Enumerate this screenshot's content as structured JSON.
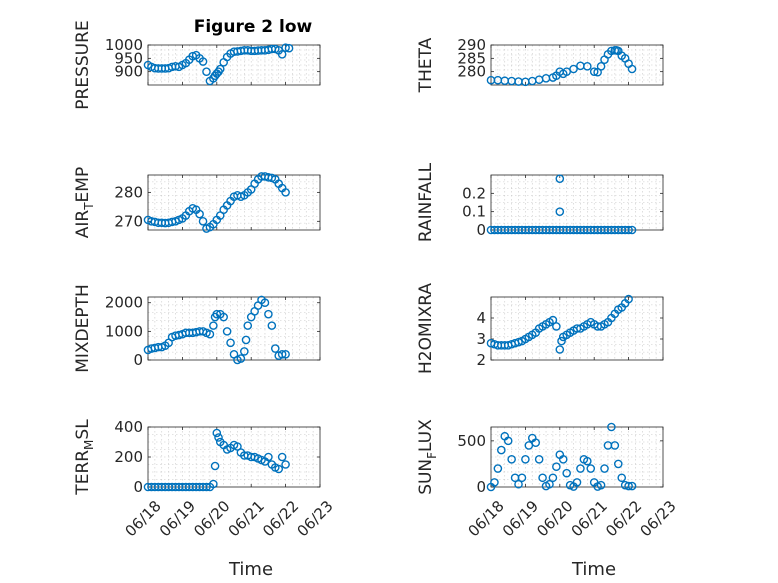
{
  "figure": {
    "title": "Figure 2 low",
    "marker_color": "#0072BD",
    "xlabel": "Time",
    "xticks": [
      "06/18",
      "06/19",
      "06/20",
      "06/21",
      "06/22",
      "06/23"
    ]
  },
  "chart_data": [
    {
      "type": "scatter",
      "ylabel": "PRESSURE",
      "ylim": [
        850,
        1000
      ],
      "yticks": [
        {
          "v": 1000,
          "label": "1000"
        },
        {
          "v": 950,
          "label": "950"
        },
        {
          "v": 900,
          "label": "900"
        }
      ],
      "x": [
        0,
        0.1,
        0.2,
        0.3,
        0.4,
        0.5,
        0.6,
        0.7,
        0.8,
        0.9,
        1.0,
        1.1,
        1.2,
        1.3,
        1.4,
        1.5,
        1.6,
        1.7,
        1.8,
        1.9,
        1.95,
        2.0,
        2.05,
        2.1,
        2.2,
        2.3,
        2.4,
        2.5,
        2.6,
        2.7,
        2.8,
        2.9,
        3.0,
        3.1,
        3.2,
        3.3,
        3.4,
        3.5,
        3.6,
        3.7,
        3.8,
        3.9,
        4.0,
        4.1
      ],
      "y": [
        925,
        918,
        913,
        912,
        912,
        912,
        913,
        918,
        920,
        918,
        925,
        932,
        945,
        958,
        962,
        950,
        938,
        900,
        865,
        875,
        885,
        893,
        900,
        910,
        935,
        955,
        968,
        975,
        976,
        978,
        980,
        980,
        978,
        978,
        979,
        980,
        980,
        982,
        985,
        985,
        980,
        965,
        990,
        988
      ]
    },
    {
      "type": "scatter",
      "ylabel": "THETA",
      "ylim": [
        275,
        290
      ],
      "yticks": [
        {
          "v": 290,
          "label": "290"
        },
        {
          "v": 285,
          "label": "285"
        },
        {
          "v": 280,
          "label": "280"
        }
      ],
      "x": [
        0,
        0.2,
        0.4,
        0.6,
        0.8,
        1.0,
        1.2,
        1.4,
        1.6,
        1.8,
        1.9,
        2.0,
        2.1,
        2.2,
        2.4,
        2.6,
        2.8,
        3.0,
        3.1,
        3.2,
        3.3,
        3.4,
        3.5,
        3.6,
        3.65,
        3.7,
        3.8,
        3.9,
        4.0,
        4.1
      ],
      "y": [
        276.8,
        276.8,
        276.6,
        276.5,
        276.3,
        276.2,
        276.5,
        277.0,
        277.5,
        277.8,
        278.5,
        280.0,
        279.2,
        280.0,
        281.0,
        282.2,
        282.0,
        280.0,
        279.8,
        282.0,
        284.5,
        286.5,
        287.8,
        288.0,
        288.0,
        287.8,
        286.0,
        285.0,
        283.0,
        281.0
      ]
    },
    {
      "type": "scatter",
      "ylabel": "AIR_TEMP",
      "ylabel_parts": [
        "AIR",
        "T",
        "EMP"
      ],
      "ylim": [
        267,
        286
      ],
      "yticks": [
        {
          "v": 280,
          "label": "280"
        },
        {
          "v": 270,
          "label": "270"
        }
      ],
      "x": [
        0,
        0.1,
        0.2,
        0.3,
        0.4,
        0.5,
        0.6,
        0.7,
        0.8,
        0.9,
        1.0,
        1.1,
        1.2,
        1.3,
        1.4,
        1.5,
        1.6,
        1.7,
        1.8,
        1.9,
        2.0,
        2.1,
        2.2,
        2.3,
        2.4,
        2.5,
        2.6,
        2.7,
        2.8,
        2.9,
        3.0,
        3.1,
        3.2,
        3.3,
        3.4,
        3.5,
        3.6,
        3.7,
        3.8,
        3.9,
        4.0
      ],
      "y": [
        270.5,
        270,
        269.8,
        269.5,
        269.5,
        269.4,
        269.5,
        269.8,
        270,
        270.5,
        271,
        272,
        273.5,
        274.5,
        274,
        272.5,
        270,
        267.5,
        268,
        269,
        270.5,
        272,
        274,
        275.5,
        277,
        278.5,
        279,
        278.5,
        279,
        280,
        281,
        283,
        284.5,
        285.5,
        285.5,
        285.2,
        285,
        284.5,
        283,
        281.5,
        280
      ]
    },
    {
      "type": "scatter",
      "ylabel": "RAINFALL",
      "ylim": [
        0,
        0.3
      ],
      "yticks": [
        {
          "v": 0.2,
          "label": "0.2"
        },
        {
          "v": 0.1,
          "label": "0.1"
        },
        {
          "v": 0,
          "label": "0"
        }
      ],
      "x": [
        0,
        0.1,
        0.2,
        0.3,
        0.4,
        0.5,
        0.6,
        0.7,
        0.8,
        0.9,
        1.0,
        1.1,
        1.2,
        1.3,
        1.4,
        1.5,
        1.6,
        1.7,
        1.8,
        1.9,
        2.0,
        2.0,
        2.0,
        2.1,
        2.2,
        2.3,
        2.4,
        2.5,
        2.6,
        2.7,
        2.8,
        2.9,
        3.0,
        3.1,
        3.2,
        3.3,
        3.4,
        3.5,
        3.6,
        3.7,
        3.8,
        3.9,
        4.0,
        4.1
      ],
      "y": [
        0,
        0,
        0,
        0,
        0,
        0,
        0,
        0,
        0,
        0,
        0,
        0,
        0,
        0,
        0,
        0,
        0,
        0,
        0,
        0,
        0.28,
        0.1,
        0,
        0,
        0,
        0,
        0,
        0,
        0,
        0,
        0,
        0,
        0,
        0,
        0,
        0,
        0,
        0,
        0,
        0,
        0,
        0,
        0,
        0
      ]
    },
    {
      "type": "scatter",
      "ylabel": "MIXDEPTH",
      "ylim": [
        0,
        2200
      ],
      "yticks": [
        {
          "v": 2000,
          "label": "2000"
        },
        {
          "v": 1000,
          "label": "1000"
        },
        {
          "v": 0,
          "label": "0"
        }
      ],
      "x": [
        0,
        0.1,
        0.2,
        0.3,
        0.4,
        0.5,
        0.6,
        0.7,
        0.8,
        0.9,
        1.0,
        1.1,
        1.2,
        1.3,
        1.4,
        1.5,
        1.6,
        1.7,
        1.8,
        1.9,
        1.95,
        2.0,
        2.1,
        2.2,
        2.3,
        2.4,
        2.5,
        2.6,
        2.7,
        2.8,
        2.85,
        2.9,
        3.0,
        3.1,
        3.2,
        3.3,
        3.4,
        3.5,
        3.6,
        3.7,
        3.8,
        3.9,
        4.0
      ],
      "y": [
        350,
        400,
        420,
        450,
        450,
        500,
        600,
        800,
        850,
        870,
        900,
        950,
        950,
        950,
        970,
        1000,
        1000,
        950,
        900,
        1200,
        1500,
        1600,
        1600,
        1500,
        1000,
        600,
        200,
        0,
        50,
        300,
        700,
        1200,
        1500,
        1700,
        1900,
        2100,
        2000,
        1600,
        1200,
        400,
        150,
        200,
        200
      ]
    },
    {
      "type": "scatter",
      "ylabel": "H2OMIXRA",
      "ylim": [
        2,
        5
      ],
      "yticks": [
        {
          "v": 4,
          "label": "4"
        },
        {
          "v": 3,
          "label": "3"
        },
        {
          "v": 2,
          "label": "2"
        }
      ],
      "x": [
        0,
        0.1,
        0.2,
        0.3,
        0.4,
        0.5,
        0.6,
        0.7,
        0.8,
        0.9,
        1.0,
        1.1,
        1.2,
        1.3,
        1.4,
        1.5,
        1.6,
        1.7,
        1.8,
        1.9,
        2.0,
        2.05,
        2.1,
        2.2,
        2.3,
        2.4,
        2.5,
        2.6,
        2.7,
        2.8,
        2.9,
        3.0,
        3.1,
        3.2,
        3.3,
        3.4,
        3.5,
        3.6,
        3.7,
        3.8,
        3.9,
        4.0
      ],
      "y": [
        2.8,
        2.75,
        2.7,
        2.7,
        2.7,
        2.7,
        2.75,
        2.8,
        2.85,
        2.9,
        3.0,
        3.1,
        3.2,
        3.3,
        3.5,
        3.6,
        3.7,
        3.8,
        3.9,
        3.6,
        2.5,
        2.9,
        3.1,
        3.2,
        3.3,
        3.4,
        3.5,
        3.5,
        3.6,
        3.7,
        3.8,
        3.7,
        3.6,
        3.6,
        3.7,
        3.8,
        4.0,
        4.2,
        4.4,
        4.5,
        4.7,
        4.9
      ]
    },
    {
      "type": "scatter",
      "ylabel": "TERR_MSL",
      "ylabel_parts": [
        "TERR",
        "M",
        "SL"
      ],
      "ylim": [
        0,
        400
      ],
      "yticks": [
        {
          "v": 400,
          "label": "400"
        },
        {
          "v": 200,
          "label": "200"
        },
        {
          "v": 0,
          "label": "0"
        }
      ],
      "x": [
        0,
        0.1,
        0.2,
        0.3,
        0.4,
        0.5,
        0.6,
        0.7,
        0.8,
        0.9,
        1.0,
        1.1,
        1.2,
        1.3,
        1.4,
        1.5,
        1.6,
        1.7,
        1.8,
        1.9,
        1.95,
        2.0,
        2.05,
        2.1,
        2.2,
        2.3,
        2.4,
        2.5,
        2.6,
        2.7,
        2.8,
        2.9,
        3.0,
        3.1,
        3.2,
        3.3,
        3.4,
        3.5,
        3.6,
        3.7,
        3.8,
        3.9,
        4.0
      ],
      "y": [
        0,
        0,
        0,
        0,
        0,
        0,
        0,
        0,
        0,
        0,
        0,
        0,
        0,
        0,
        0,
        0,
        0,
        0,
        0,
        20,
        140,
        360,
        330,
        300,
        280,
        250,
        260,
        280,
        270,
        230,
        210,
        210,
        200,
        200,
        190,
        180,
        170,
        200,
        150,
        130,
        120,
        200,
        150
      ]
    },
    {
      "type": "scatter",
      "ylabel": "SUN_FLUX",
      "ylabel_parts": [
        "SUN",
        "F",
        "LUX"
      ],
      "ylim": [
        0,
        650
      ],
      "yticks": [
        {
          "v": 500,
          "label": "500"
        },
        {
          "v": 0,
          "label": "0"
        }
      ],
      "x": [
        0,
        0.1,
        0.2,
        0.3,
        0.4,
        0.5,
        0.6,
        0.7,
        0.8,
        0.9,
        1.0,
        1.1,
        1.2,
        1.3,
        1.4,
        1.5,
        1.6,
        1.7,
        1.8,
        1.9,
        2.0,
        2.1,
        2.2,
        2.3,
        2.4,
        2.5,
        2.6,
        2.7,
        2.8,
        2.9,
        3.0,
        3.1,
        3.2,
        3.3,
        3.4,
        3.5,
        3.6,
        3.7,
        3.8,
        3.9,
        4.0,
        4.1
      ],
      "y": [
        0,
        50,
        200,
        400,
        550,
        500,
        300,
        100,
        30,
        100,
        300,
        450,
        530,
        480,
        300,
        100,
        10,
        30,
        100,
        220,
        350,
        300,
        150,
        20,
        5,
        50,
        200,
        300,
        280,
        200,
        50,
        5,
        20,
        200,
        450,
        650,
        450,
        250,
        100,
        20,
        10,
        10
      ]
    }
  ]
}
